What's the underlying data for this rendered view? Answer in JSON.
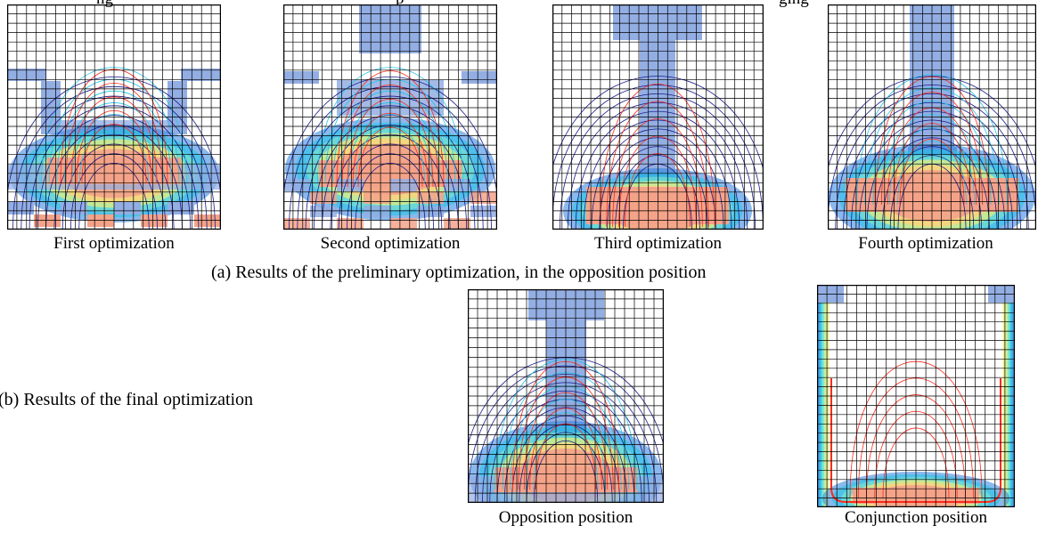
{
  "header_fragment": "ng",
  "header_fragment_2": "p",
  "header_fragment_3": "ging",
  "panels": {
    "first": {
      "caption": "First optimization"
    },
    "second": {
      "caption": "Second optimization"
    },
    "third": {
      "caption": "Third optimization"
    },
    "fourth": {
      "caption": "Fourth optimization"
    },
    "opposition": {
      "caption": "Opposition position"
    },
    "conjunction": {
      "caption": "Conjunction position"
    }
  },
  "captions": {
    "a": "(a) Results of the preliminary optimization, in the opposition position",
    "b": "(b) Results of the final optimization"
  },
  "colors": {
    "iron": "#93aee3",
    "magnet": "#f4a389",
    "grid": "#000000",
    "contour_outer": "#1a1a8a",
    "contour_mid": "#22c6e8",
    "contour_hot": "#ff2a1a"
  }
}
